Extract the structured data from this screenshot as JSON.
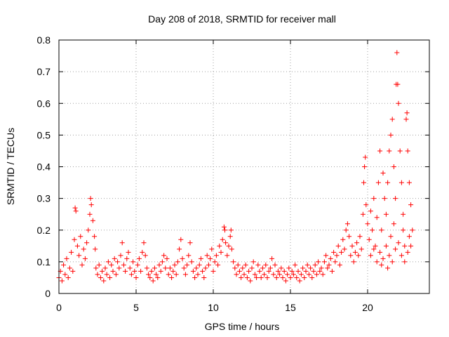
{
  "chart_data": {
    "type": "scatter",
    "title": "Day 208 of 2018, SRMTID for receiver mall",
    "xlabel": "GPS time / hours",
    "ylabel": "SRMTID / TECUs",
    "xlim": [
      0,
      24
    ],
    "ylim": [
      0,
      0.8
    ],
    "xticks": [
      0,
      5,
      10,
      15,
      20
    ],
    "xtick_labels": [
      "0",
      "5",
      "10",
      "15",
      "20"
    ],
    "yticks": [
      0,
      0.1,
      0.2,
      0.3,
      0.4,
      0.5,
      0.6,
      0.7,
      0.8
    ],
    "ytick_labels": [
      "0",
      "0.1",
      "0.2",
      "0.3",
      "0.4",
      "0.5",
      "0.6",
      "0.7",
      "0.8"
    ],
    "grid": true,
    "marker": "+",
    "color": "#ff0000",
    "series": [
      {
        "name": "SRMTID",
        "points": [
          [
            0.0,
            0.05
          ],
          [
            0.1,
            0.07
          ],
          [
            0.2,
            0.04
          ],
          [
            0.3,
            0.09
          ],
          [
            0.4,
            0.06
          ],
          [
            0.5,
            0.11
          ],
          [
            0.6,
            0.05
          ],
          [
            0.7,
            0.08
          ],
          [
            0.8,
            0.13
          ],
          [
            0.9,
            0.07
          ],
          [
            1.0,
            0.17
          ],
          [
            1.05,
            0.27
          ],
          [
            1.1,
            0.26
          ],
          [
            1.2,
            0.15
          ],
          [
            1.3,
            0.12
          ],
          [
            1.4,
            0.18
          ],
          [
            1.5,
            0.09
          ],
          [
            1.6,
            0.14
          ],
          [
            1.7,
            0.11
          ],
          [
            1.8,
            0.16
          ],
          [
            1.9,
            0.2
          ],
          [
            2.0,
            0.25
          ],
          [
            2.05,
            0.3
          ],
          [
            2.1,
            0.28
          ],
          [
            2.2,
            0.23
          ],
          [
            2.3,
            0.18
          ],
          [
            2.35,
            0.14
          ],
          [
            2.4,
            0.08
          ],
          [
            2.5,
            0.06
          ],
          [
            2.6,
            0.09
          ],
          [
            2.7,
            0.05
          ],
          [
            2.8,
            0.07
          ],
          [
            2.9,
            0.04
          ],
          [
            3.0,
            0.08
          ],
          [
            3.1,
            0.06
          ],
          [
            3.2,
            0.1
          ],
          [
            3.3,
            0.05
          ],
          [
            3.4,
            0.09
          ],
          [
            3.5,
            0.07
          ],
          [
            3.6,
            0.11
          ],
          [
            3.7,
            0.06
          ],
          [
            3.8,
            0.1
          ],
          [
            3.9,
            0.08
          ],
          [
            4.0,
            0.12
          ],
          [
            4.1,
            0.16
          ],
          [
            4.2,
            0.09
          ],
          [
            4.3,
            0.07
          ],
          [
            4.4,
            0.11
          ],
          [
            4.5,
            0.13
          ],
          [
            4.6,
            0.08
          ],
          [
            4.7,
            0.06
          ],
          [
            4.8,
            0.1
          ],
          [
            4.9,
            0.07
          ],
          [
            5.0,
            0.05
          ],
          [
            5.1,
            0.09
          ],
          [
            5.2,
            0.11
          ],
          [
            5.3,
            0.07
          ],
          [
            5.4,
            0.13
          ],
          [
            5.5,
            0.16
          ],
          [
            5.6,
            0.12
          ],
          [
            5.7,
            0.08
          ],
          [
            5.8,
            0.06
          ],
          [
            5.9,
            0.05
          ],
          [
            6.0,
            0.07
          ],
          [
            6.1,
            0.04
          ],
          [
            6.2,
            0.08
          ],
          [
            6.3,
            0.06
          ],
          [
            6.4,
            0.05
          ],
          [
            6.5,
            0.09
          ],
          [
            6.6,
            0.07
          ],
          [
            6.7,
            0.1
          ],
          [
            6.8,
            0.12
          ],
          [
            6.9,
            0.08
          ],
          [
            7.0,
            0.11
          ],
          [
            7.1,
            0.06
          ],
          [
            7.2,
            0.08
          ],
          [
            7.3,
            0.05
          ],
          [
            7.4,
            0.07
          ],
          [
            7.5,
            0.09
          ],
          [
            7.6,
            0.06
          ],
          [
            7.7,
            0.1
          ],
          [
            7.8,
            0.14
          ],
          [
            7.9,
            0.17
          ],
          [
            8.0,
            0.11
          ],
          [
            8.1,
            0.08
          ],
          [
            8.2,
            0.06
          ],
          [
            8.3,
            0.09
          ],
          [
            8.4,
            0.12
          ],
          [
            8.5,
            0.16
          ],
          [
            8.6,
            0.1
          ],
          [
            8.7,
            0.07
          ],
          [
            8.8,
            0.05
          ],
          [
            8.9,
            0.08
          ],
          [
            9.0,
            0.06
          ],
          [
            9.1,
            0.09
          ],
          [
            9.2,
            0.11
          ],
          [
            9.3,
            0.07
          ],
          [
            9.4,
            0.05
          ],
          [
            9.5,
            0.08
          ],
          [
            9.6,
            0.12
          ],
          [
            9.7,
            0.09
          ],
          [
            9.8,
            0.11
          ],
          [
            9.9,
            0.14
          ],
          [
            10.0,
            0.07
          ],
          [
            10.1,
            0.1
          ],
          [
            10.2,
            0.12
          ],
          [
            10.3,
            0.09
          ],
          [
            10.4,
            0.15
          ],
          [
            10.5,
            0.13
          ],
          [
            10.6,
            0.17
          ],
          [
            10.7,
            0.21
          ],
          [
            10.75,
            0.2
          ],
          [
            10.8,
            0.16
          ],
          [
            10.9,
            0.12
          ],
          [
            11.0,
            0.15
          ],
          [
            11.1,
            0.18
          ],
          [
            11.15,
            0.2
          ],
          [
            11.2,
            0.14
          ],
          [
            11.3,
            0.1
          ],
          [
            11.4,
            0.08
          ],
          [
            11.5,
            0.06
          ],
          [
            11.6,
            0.09
          ],
          [
            11.7,
            0.07
          ],
          [
            11.8,
            0.05
          ],
          [
            11.9,
            0.08
          ],
          [
            12.0,
            0.06
          ],
          [
            12.1,
            0.09
          ],
          [
            12.2,
            0.05
          ],
          [
            12.3,
            0.07
          ],
          [
            12.4,
            0.04
          ],
          [
            12.5,
            0.08
          ],
          [
            12.6,
            0.1
          ],
          [
            12.7,
            0.06
          ],
          [
            12.8,
            0.05
          ],
          [
            12.9,
            0.09
          ],
          [
            13.0,
            0.07
          ],
          [
            13.1,
            0.05
          ],
          [
            13.2,
            0.08
          ],
          [
            13.3,
            0.06
          ],
          [
            13.4,
            0.09
          ],
          [
            13.5,
            0.05
          ],
          [
            13.6,
            0.07
          ],
          [
            13.7,
            0.08
          ],
          [
            13.8,
            0.11
          ],
          [
            13.9,
            0.06
          ],
          [
            14.0,
            0.09
          ],
          [
            14.1,
            0.05
          ],
          [
            14.2,
            0.07
          ],
          [
            14.3,
            0.06
          ],
          [
            14.4,
            0.08
          ],
          [
            14.5,
            0.05
          ],
          [
            14.6,
            0.07
          ],
          [
            14.7,
            0.04
          ],
          [
            14.8,
            0.06
          ],
          [
            14.9,
            0.08
          ],
          [
            15.0,
            0.05
          ],
          [
            15.1,
            0.07
          ],
          [
            15.2,
            0.06
          ],
          [
            15.3,
            0.09
          ],
          [
            15.4,
            0.05
          ],
          [
            15.5,
            0.07
          ],
          [
            15.6,
            0.04
          ],
          [
            15.7,
            0.06
          ],
          [
            15.8,
            0.08
          ],
          [
            15.9,
            0.05
          ],
          [
            16.0,
            0.07
          ],
          [
            16.1,
            0.09
          ],
          [
            16.2,
            0.06
          ],
          [
            16.3,
            0.08
          ],
          [
            16.4,
            0.05
          ],
          [
            16.5,
            0.07
          ],
          [
            16.6,
            0.09
          ],
          [
            16.7,
            0.06
          ],
          [
            16.8,
            0.1
          ],
          [
            16.9,
            0.07
          ],
          [
            17.0,
            0.08
          ],
          [
            17.1,
            0.06
          ],
          [
            17.2,
            0.1
          ],
          [
            17.3,
            0.12
          ],
          [
            17.4,
            0.08
          ],
          [
            17.5,
            0.09
          ],
          [
            17.6,
            0.11
          ],
          [
            17.7,
            0.07
          ],
          [
            17.8,
            0.13
          ],
          [
            17.9,
            0.1
          ],
          [
            18.0,
            0.12
          ],
          [
            18.1,
            0.15
          ],
          [
            18.2,
            0.09
          ],
          [
            18.3,
            0.13
          ],
          [
            18.4,
            0.17
          ],
          [
            18.5,
            0.14
          ],
          [
            18.6,
            0.2
          ],
          [
            18.7,
            0.22
          ],
          [
            18.8,
            0.18
          ],
          [
            18.9,
            0.12
          ],
          [
            19.0,
            0.15
          ],
          [
            19.1,
            0.1
          ],
          [
            19.2,
            0.13
          ],
          [
            19.3,
            0.16
          ],
          [
            19.4,
            0.12
          ],
          [
            19.5,
            0.18
          ],
          [
            19.6,
            0.14
          ],
          [
            19.7,
            0.25
          ],
          [
            19.75,
            0.35
          ],
          [
            19.8,
            0.4
          ],
          [
            19.85,
            0.43
          ],
          [
            19.9,
            0.28
          ],
          [
            20.0,
            0.22
          ],
          [
            20.1,
            0.17
          ],
          [
            20.2,
            0.26
          ],
          [
            20.3,
            0.2
          ],
          [
            20.4,
            0.3
          ],
          [
            20.5,
            0.15
          ],
          [
            20.6,
            0.24
          ],
          [
            20.7,
            0.35
          ],
          [
            20.8,
            0.45
          ],
          [
            20.9,
            0.2
          ],
          [
            21.0,
            0.38
          ],
          [
            21.1,
            0.3
          ],
          [
            21.2,
            0.25
          ],
          [
            21.3,
            0.35
          ],
          [
            21.4,
            0.45
          ],
          [
            21.5,
            0.5
          ],
          [
            21.6,
            0.55
          ],
          [
            21.7,
            0.4
          ],
          [
            21.8,
            0.3
          ],
          [
            21.85,
            0.66
          ],
          [
            21.9,
            0.76
          ],
          [
            21.95,
            0.66
          ],
          [
            22.0,
            0.6
          ],
          [
            22.1,
            0.45
          ],
          [
            22.2,
            0.35
          ],
          [
            22.3,
            0.25
          ],
          [
            22.4,
            0.15
          ],
          [
            22.5,
            0.55
          ],
          [
            22.55,
            0.57
          ],
          [
            22.6,
            0.45
          ],
          [
            22.7,
            0.35
          ],
          [
            22.8,
            0.28
          ],
          [
            22.9,
            0.2
          ],
          [
            20.2,
            0.12
          ],
          [
            20.4,
            0.14
          ],
          [
            20.6,
            0.1
          ],
          [
            20.8,
            0.13
          ],
          [
            21.0,
            0.11
          ],
          [
            21.2,
            0.15
          ],
          [
            21.4,
            0.12
          ],
          [
            21.6,
            0.1
          ],
          [
            21.8,
            0.14
          ],
          [
            22.0,
            0.16
          ],
          [
            22.2,
            0.12
          ],
          [
            22.4,
            0.1
          ],
          [
            22.6,
            0.13
          ],
          [
            22.8,
            0.15
          ],
          [
            21.5,
            0.18
          ],
          [
            21.7,
            0.22
          ],
          [
            22.3,
            0.2
          ],
          [
            22.7,
            0.18
          ],
          [
            20.9,
            0.09
          ],
          [
            21.3,
            0.08
          ]
        ]
      }
    ]
  }
}
